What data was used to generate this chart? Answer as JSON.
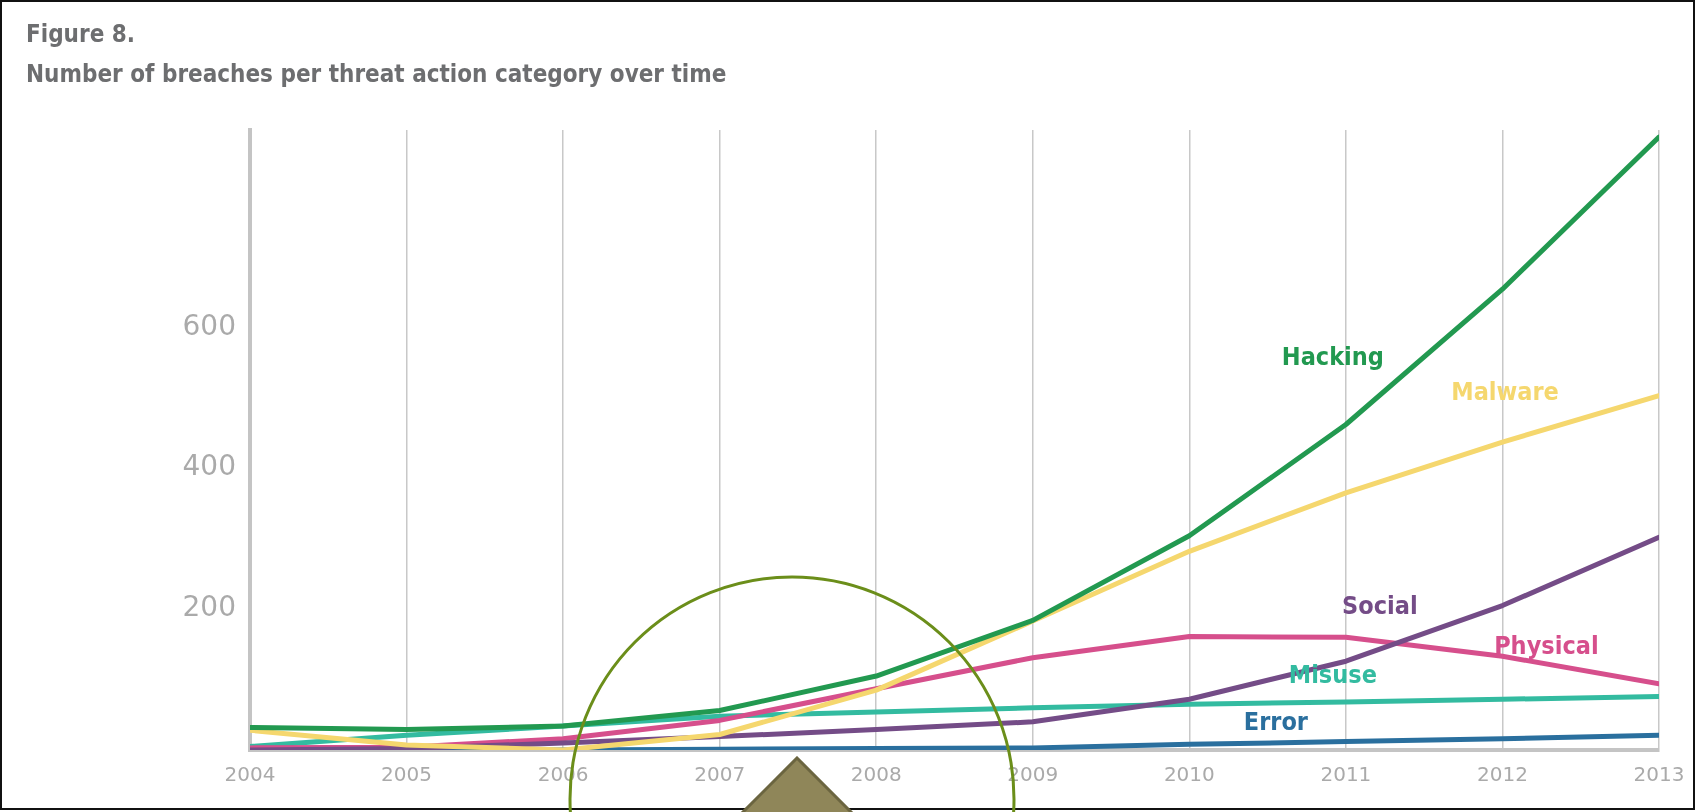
{
  "chart_data": {
    "type": "line",
    "title": "Figure 8.",
    "subtitle": "Number of breaches per threat action category over time",
    "x": [
      2004,
      2005,
      2006,
      2007,
      2008,
      2009,
      2010,
      2011,
      2012,
      2013
    ],
    "xlim": [
      2004,
      2013
    ],
    "xticks": [
      2004,
      2005,
      2006,
      2007,
      2008,
      2009,
      2010,
      2011,
      2012,
      2013
    ],
    "ylim": [
      0,
      880
    ],
    "yticks": [
      200,
      400,
      600
    ],
    "grid": "x",
    "line_style": "solid",
    "marker": "none",
    "series": [
      {
        "name": "Hacking",
        "color": "#229950",
        "values": [
          32,
          29,
          34,
          56,
          105,
          184,
          304,
          462,
          654,
          870
        ]
      },
      {
        "name": "Malware",
        "color": "#f5d76e",
        "values": [
          28,
          7,
          0,
          22,
          85,
          183,
          282,
          365,
          437,
          503
        ]
      },
      {
        "name": "Social",
        "color": "#744c87",
        "values": [
          0,
          2,
          10,
          19,
          29,
          40,
          72,
          126,
          205,
          302
        ]
      },
      {
        "name": "Physical",
        "color": "#d64f8c",
        "values": [
          3,
          4,
          16,
          42,
          87,
          131,
          161,
          160,
          133,
          94
        ]
      },
      {
        "name": "Misuse",
        "color": "#33bba0",
        "values": [
          5,
          21,
          34,
          48,
          54,
          60,
          65,
          68,
          72,
          76
        ]
      },
      {
        "name": "Error",
        "color": "#2a6f9e",
        "values": [
          0,
          0,
          0,
          1,
          2,
          3,
          8,
          12,
          16,
          21
        ]
      }
    ]
  }
}
